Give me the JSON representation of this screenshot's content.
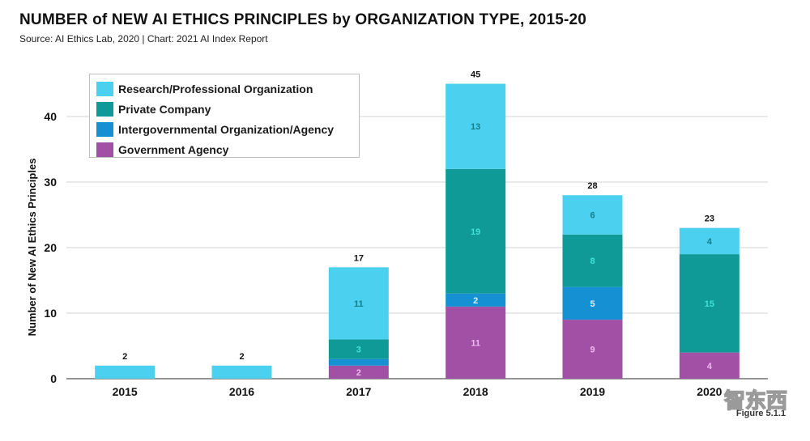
{
  "header": {
    "title": "NUMBER of NEW AI ETHICS PRINCIPLES by ORGANIZATION TYPE, 2015-20",
    "subtitle": "Source: AI Ethics Lab, 2020 | Chart: 2021 AI Index Report"
  },
  "figure_label": "Figure 5.1.1",
  "watermark": "智东西",
  "colors": {
    "research": "#4cd0f0",
    "private": "#0f9a98",
    "intergov": "#1590d2",
    "government": "#a24fa6"
  },
  "chart_data": {
    "type": "bar",
    "stacked": true,
    "title": "NUMBER of NEW AI ETHICS PRINCIPLES by ORGANIZATION TYPE, 2015-20",
    "xlabel": "",
    "ylabel": "Number of New AI Ethics Principles",
    "ylim": [
      0,
      50
    ],
    "yticks": [
      0,
      10,
      20,
      30,
      40
    ],
    "grid": true,
    "legend_position": "top-left",
    "categories": [
      "2015",
      "2016",
      "2017",
      "2018",
      "2019",
      "2020"
    ],
    "totals": [
      2,
      2,
      17,
      45,
      28,
      23
    ],
    "series": [
      {
        "key": "government",
        "name": "Government Agency",
        "values": [
          0,
          0,
          2,
          11,
          9,
          4
        ]
      },
      {
        "key": "intergov",
        "name": "Intergovernmental Organization/Agency",
        "values": [
          0,
          0,
          1,
          2,
          5,
          0
        ]
      },
      {
        "key": "private",
        "name": "Private Company",
        "values": [
          0,
          0,
          3,
          19,
          8,
          15
        ]
      },
      {
        "key": "research",
        "name": "Research/Professional Organization",
        "values": [
          2,
          2,
          11,
          13,
          6,
          4
        ]
      }
    ],
    "label_colors": {
      "government": "#f2b9f0",
      "intergov": "#d8f2ff",
      "private": "#44e0d8",
      "research": "#107f8c"
    },
    "show_labels": {
      "government": [
        false,
        false,
        true,
        true,
        true,
        true
      ],
      "intergov": [
        false,
        false,
        false,
        true,
        true,
        false
      ],
      "private": [
        false,
        false,
        true,
        true,
        true,
        true
      ],
      "research": [
        false,
        false,
        true,
        true,
        true,
        true
      ]
    }
  }
}
